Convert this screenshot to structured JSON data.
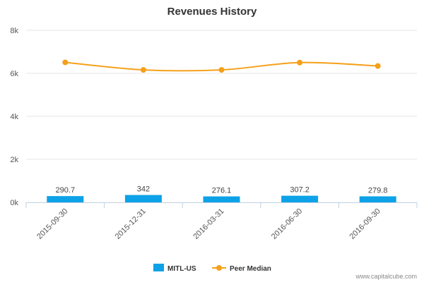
{
  "chart_data": {
    "type": "bar",
    "title": "Revenues History",
    "categories": [
      "2015-09-30",
      "2015-12-31",
      "2016-03-31",
      "2016-06-30",
      "2016-09-30"
    ],
    "y_ticks": [
      "0k",
      "2k",
      "4k",
      "6k",
      "8k"
    ],
    "ylim": [
      0,
      8000
    ],
    "series": [
      {
        "name": "MITL-US",
        "type": "bar",
        "color": "#0da2e8",
        "values": [
          290.7,
          342,
          276.1,
          307.2,
          279.8
        ],
        "labels": [
          "290.7",
          "342",
          "276.1",
          "307.2",
          "279.8"
        ]
      },
      {
        "name": "Peer Median",
        "type": "line",
        "color": "#f5a01a",
        "values": [
          6510,
          6160,
          6160,
          6500,
          6340
        ]
      }
    ],
    "legend_position": "bottom-center"
  },
  "credit": "www.capitalcube.com"
}
